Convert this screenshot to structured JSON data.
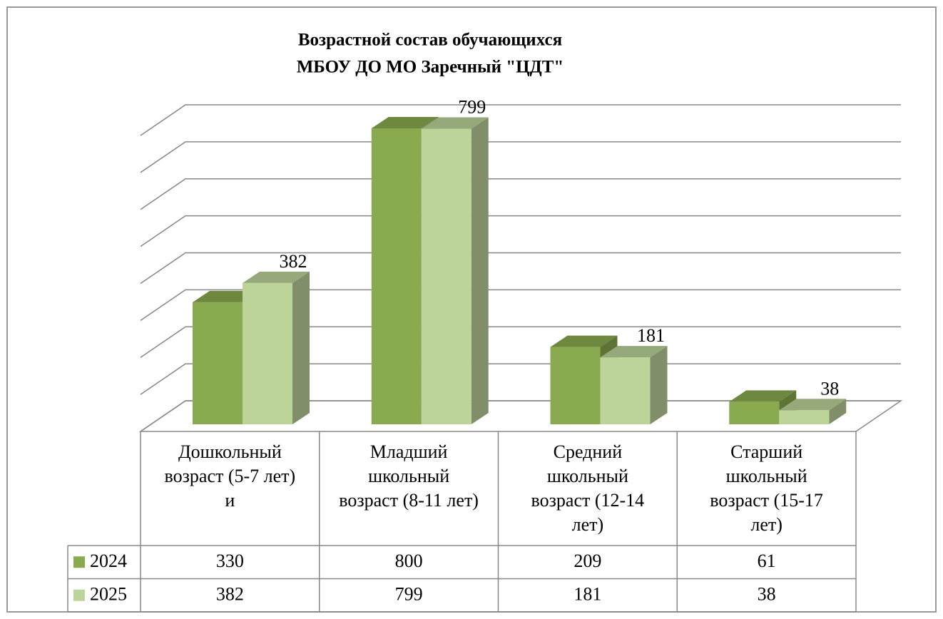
{
  "chart_data": {
    "type": "bar3d",
    "title": [
      "Возрастной состав обучающихся",
      "МБОУ ДО МО Заречный \"ЦДТ\""
    ],
    "categories": [
      "Дошкольный возраст (5-7 лет) и",
      "Младший школьный возраст (8-11 лет)",
      "Средний школьный возраст (12-14 лет)",
      "Старший школьный возраст (15-17 лет)"
    ],
    "series": [
      {
        "name": "2024",
        "color": "#8aaa50",
        "values": [
          330,
          800,
          209,
          61
        ],
        "data_labels": false
      },
      {
        "name": "2025",
        "color": "#bcd39a",
        "values": [
          382,
          799,
          181,
          38
        ],
        "data_labels": true
      }
    ],
    "ylim": [
      0,
      800
    ],
    "yticks": [
      0,
      100,
      200,
      300,
      400,
      500,
      600,
      700,
      800
    ],
    "grid": true,
    "data_table": true
  }
}
